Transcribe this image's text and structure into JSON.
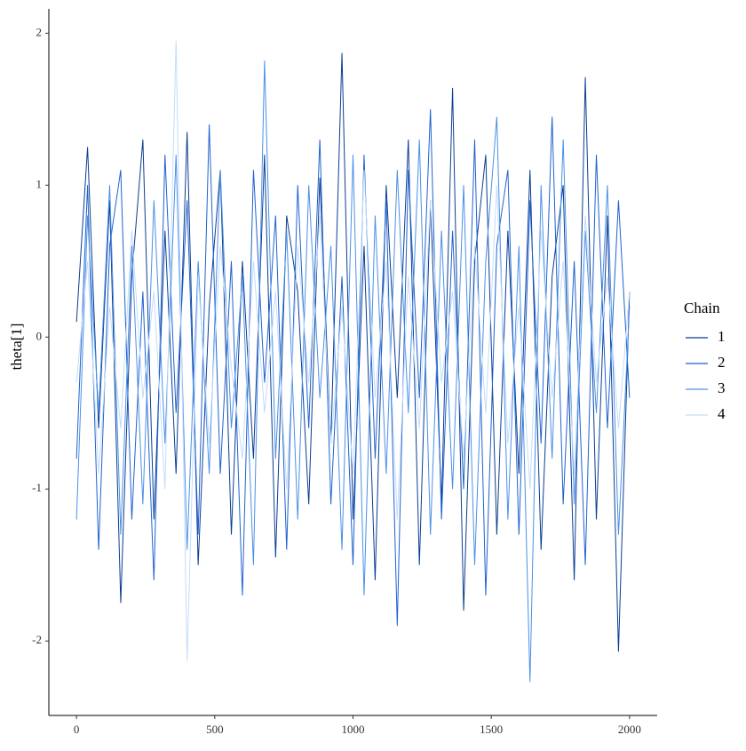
{
  "chart_data": {
    "type": "line",
    "y_label": "theta[1]",
    "legend_title": "Chain",
    "legend": "right",
    "x": [
      0,
      40,
      80,
      120,
      160,
      200,
      240,
      280,
      320,
      360,
      400,
      440,
      480,
      520,
      560,
      600,
      640,
      680,
      720,
      760,
      800,
      840,
      880,
      920,
      960,
      1000,
      1040,
      1080,
      1120,
      1160,
      1200,
      1240,
      1280,
      1320,
      1360,
      1400,
      1440,
      1480,
      1520,
      1560,
      1600,
      1640,
      1680,
      1720,
      1760,
      1800,
      1840,
      1880,
      1920,
      1960,
      2000
    ],
    "xlim": [
      -100,
      2100
    ],
    "xticks": [
      0,
      500,
      1000,
      1500,
      2000
    ],
    "ylim": [
      -2.49,
      2.16
    ],
    "yticks": [
      -2,
      -1,
      0,
      1,
      2
    ],
    "series": [
      {
        "name": "1",
        "color": "#0b3d91",
        "values": [
          0.1,
          1.25,
          -0.6,
          0.9,
          -1.75,
          0.4,
          1.3,
          -1.2,
          0.7,
          -0.9,
          1.35,
          -1.5,
          0.2,
          1.1,
          -1.3,
          0.5,
          -0.8,
          1.2,
          -1.45,
          0.8,
          0.3,
          -1.1,
          1.05,
          -0.7,
          1.87,
          -1.2,
          0.6,
          -1.6,
          1.0,
          -0.4,
          1.3,
          -1.5,
          0.9,
          -1.1,
          1.64,
          -1.8,
          0.5,
          1.2,
          -1.3,
          0.7,
          -0.9,
          1.1,
          -1.4,
          0.4,
          1.0,
          -1.6,
          1.71,
          -1.2,
          0.8,
          -2.07,
          0.3
        ]
      },
      {
        "name": "2",
        "color": "#1f62d0",
        "values": [
          -0.8,
          1.0,
          -1.4,
          0.6,
          1.1,
          -1.2,
          0.3,
          -1.6,
          1.2,
          -0.5,
          0.9,
          -1.3,
          1.4,
          -0.9,
          0.5,
          -1.7,
          1.1,
          -0.3,
          0.8,
          -1.4,
          1.0,
          -0.6,
          1.3,
          -1.1,
          0.4,
          -1.5,
          1.2,
          -0.8,
          0.9,
          -1.9,
          1.1,
          -0.4,
          1.5,
          -1.2,
          0.7,
          -1.0,
          1.3,
          -1.7,
          0.6,
          1.1,
          -1.3,
          0.9,
          -0.7,
          1.45,
          -1.1,
          0.5,
          -1.5,
          1.2,
          -0.6,
          0.9,
          -0.4
        ]
      },
      {
        "name": "3",
        "color": "#4a90e8",
        "values": [
          -1.2,
          0.8,
          -0.5,
          1.0,
          -1.3,
          0.6,
          -1.1,
          0.9,
          -0.7,
          1.2,
          -1.4,
          0.5,
          -0.9,
          1.1,
          -0.6,
          0.4,
          -1.5,
          1.82,
          -0.8,
          0.7,
          -1.2,
          1.0,
          -0.4,
          0.6,
          -1.4,
          1.2,
          -1.7,
          0.8,
          -0.9,
          1.1,
          -0.5,
          1.3,
          -1.3,
          0.7,
          -1.0,
          1.0,
          -1.5,
          0.5,
          1.45,
          -1.2,
          0.6,
          -2.27,
          1.0,
          -0.8,
          1.3,
          -1.1,
          0.7,
          -0.5,
          1.0,
          -1.3,
          0.2
        ]
      },
      {
        "name": "4",
        "color": "#c3dcfa",
        "values": [
          -0.3,
          0.5,
          -0.9,
          0.2,
          -0.6,
          0.7,
          -0.4,
          0.3,
          -1.0,
          1.95,
          -2.13,
          0.4,
          -0.7,
          0.6,
          -0.2,
          -0.8,
          0.5,
          -0.5,
          0.3,
          -1.0,
          0.6,
          -0.3,
          0.8,
          -0.7,
          0.2,
          -0.9,
          1.1,
          -0.4,
          0.5,
          -1.2,
          0.4,
          -0.6,
          0.9,
          -0.3,
          0.3,
          -0.8,
          0.6,
          -0.5,
          1.0,
          -0.7,
          0.2,
          -1.0,
          0.7,
          -0.4,
          0.5,
          -0.9,
          0.8,
          -0.3,
          0.4,
          -0.6,
          0.3
        ]
      }
    ]
  }
}
